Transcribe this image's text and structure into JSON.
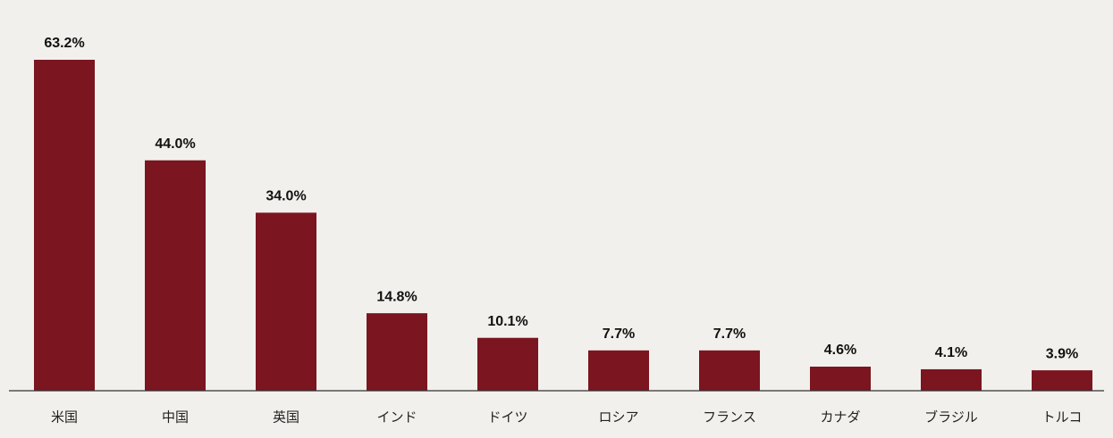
{
  "chart_data": {
    "type": "bar",
    "categories": [
      "米国",
      "中国",
      "英国",
      "インド",
      "ドイツ",
      "ロシア",
      "フランス",
      "カナダ",
      "ブラジル",
      "トルコ"
    ],
    "values": [
      63.2,
      44.0,
      34.0,
      14.8,
      10.1,
      7.7,
      7.7,
      4.6,
      4.1,
      3.9
    ],
    "value_labels": [
      "63.2%",
      "44.0%",
      "34.0%",
      "14.8%",
      "10.1%",
      "7.7%",
      "7.7%",
      "4.6%",
      "4.1%",
      "3.9%"
    ],
    "color": "#7b1520"
  }
}
